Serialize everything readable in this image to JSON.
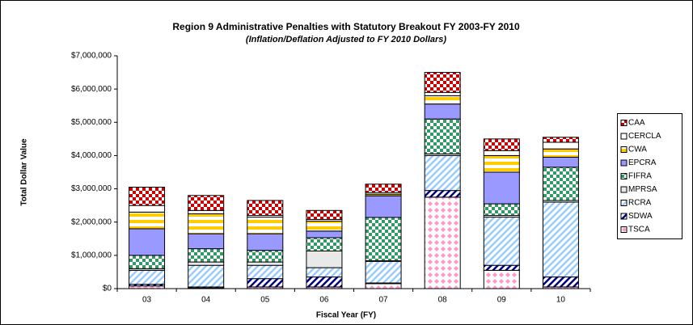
{
  "chart_data": {
    "type": "stacked_bar",
    "title": "Region 9 Administrative Penalties with Statutory Breakout FY 2003-FY 2010",
    "subtitle": "(Inflation/Deflation Adjusted to FY 2010 Dollars)",
    "y_label": "Total Dollar Value",
    "x_label": "Fiscal Year (FY)",
    "categories": [
      "03",
      "04",
      "05",
      "06",
      "07",
      "08",
      "09",
      "10"
    ],
    "series": [
      {
        "name": "TSCA",
        "color": "#ff99cc",
        "pattern": "diamond",
        "values": [
          80000,
          20000,
          50000,
          50000,
          150000,
          2750000,
          550000,
          50000
        ]
      },
      {
        "name": "SDWA",
        "color": "#000080",
        "pattern": "diagonal",
        "values": [
          50000,
          30000,
          250000,
          300000,
          20000,
          200000,
          150000,
          300000
        ]
      },
      {
        "name": "RCRA",
        "color": "#99ccff",
        "pattern": "diagonal",
        "values": [
          420000,
          650000,
          400000,
          280000,
          650000,
          1050000,
          1450000,
          2250000
        ]
      },
      {
        "name": "MPRSA",
        "color": "#c0c0c0",
        "pattern": "solid-light",
        "values": [
          50000,
          100000,
          100000,
          500000,
          20000,
          50000,
          50000,
          50000
        ]
      },
      {
        "name": "FIFRA",
        "color": "#339966",
        "pattern": "checker",
        "values": [
          400000,
          400000,
          350000,
          400000,
          1300000,
          1050000,
          350000,
          1000000
        ]
      },
      {
        "name": "EPCRA",
        "color": "#9999ff",
        "pattern": "solid",
        "values": [
          800000,
          450000,
          500000,
          200000,
          650000,
          450000,
          950000,
          300000
        ]
      },
      {
        "name": "CWA",
        "color": "#ffcc00",
        "pattern": "horizontal",
        "values": [
          500000,
          600000,
          500000,
          300000,
          50000,
          250000,
          500000,
          250000
        ]
      },
      {
        "name": "CERCLA",
        "color": "#ffffff",
        "pattern": "solid",
        "values": [
          200000,
          100000,
          50000,
          50000,
          50000,
          100000,
          150000,
          200000
        ]
      },
      {
        "name": "CAA",
        "color": "#cc0000",
        "pattern": "checker",
        "values": [
          550000,
          450000,
          450000,
          270000,
          250000,
          600000,
          350000,
          150000
        ]
      }
    ],
    "ylim": [
      0,
      7000000
    ],
    "yticks": [
      {
        "value": 0,
        "label": "$0"
      },
      {
        "value": 1000000,
        "label": "$1,000,000"
      },
      {
        "value": 2000000,
        "label": "$2,000,000"
      },
      {
        "value": 3000000,
        "label": "$3,000,000"
      },
      {
        "value": 4000000,
        "label": "$4,000,000"
      },
      {
        "value": 5000000,
        "label": "$5,000,000"
      },
      {
        "value": 6000000,
        "label": "$6,000,000"
      },
      {
        "value": 7000000,
        "label": "$7,000,000"
      }
    ],
    "grid": false,
    "legend": "right"
  }
}
